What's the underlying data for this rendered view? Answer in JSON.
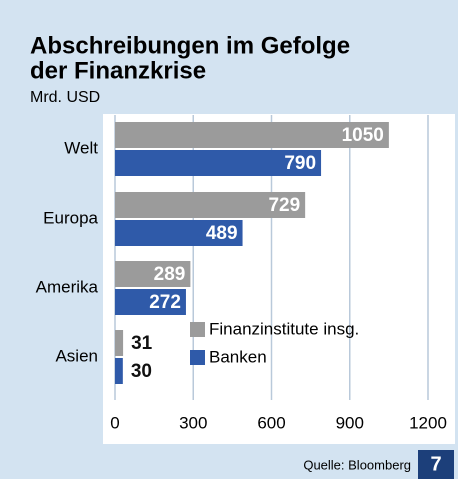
{
  "chart_data": {
    "type": "hbar",
    "title": "Abschreibungen im Gefolge der Finanzkrise",
    "title_lines": [
      "Abschreibungen im Gefolge",
      "der Finanzkrise"
    ],
    "subtitle": "Mrd. USD",
    "categories": [
      "Welt",
      "Europa",
      "Amerika",
      "Asien"
    ],
    "series": [
      {
        "name": "Finanzinstitute insg.",
        "color": "#9b9b9b",
        "values": [
          1050,
          729,
          289,
          31
        ]
      },
      {
        "name": "Banken",
        "color": "#2f5aa9",
        "values": [
          790,
          489,
          272,
          30
        ]
      }
    ],
    "xlim": [
      0,
      1200
    ],
    "xticks": [
      0,
      300,
      600,
      900,
      1200
    ],
    "grid": true,
    "source": "Quelle: Bloomberg",
    "badge": "7"
  }
}
